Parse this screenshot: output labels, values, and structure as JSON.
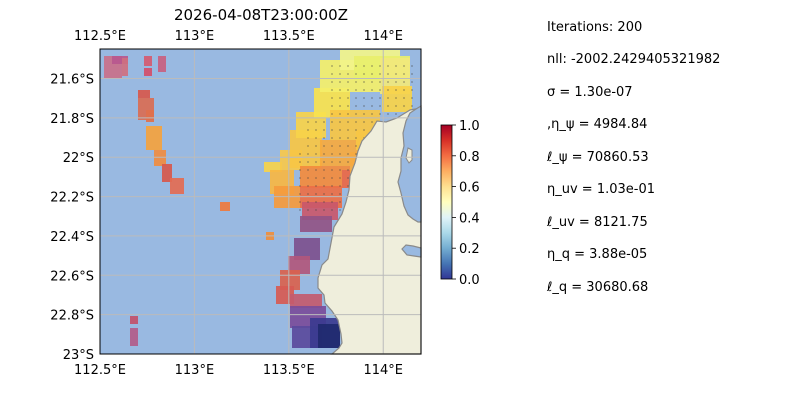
{
  "title": "2026-04-08T23:00:00Z",
  "map": {
    "lon_range": [
      112.5,
      114.2
    ],
    "lat_range": [
      -23.0,
      -21.45
    ],
    "lon_ticks": [
      {
        "value": 112.5,
        "label": "112.5°E"
      },
      {
        "value": 113.0,
        "label": "113°E"
      },
      {
        "value": 113.5,
        "label": "113.5°E"
      },
      {
        "value": 114.0,
        "label": "114°E"
      }
    ],
    "lat_ticks": [
      {
        "value": -21.6,
        "label": "21.6°S"
      },
      {
        "value": -21.8,
        "label": "21.8°S"
      },
      {
        "value": -22.0,
        "label": "22°S"
      },
      {
        "value": -22.2,
        "label": "22.2°S"
      },
      {
        "value": -22.4,
        "label": "22.4°S"
      },
      {
        "value": -22.6,
        "label": "22.6°S"
      },
      {
        "value": -22.8,
        "label": "22.8°S"
      },
      {
        "value": -23.0,
        "label": "23°S"
      }
    ],
    "colors": {
      "ocean": "#99b9e1",
      "land": "#efeedc",
      "coastline": "#8a8a8a",
      "grid": "#bbbbbb"
    }
  },
  "colorbar": {
    "colormap": "RdYlBu_r",
    "range": [
      0.0,
      1.0
    ],
    "ticks": [
      "0.0",
      "0.2",
      "0.4",
      "0.6",
      "0.8",
      "1.0"
    ]
  },
  "info": {
    "iterations": "Iterations: 200",
    "nll": "nll: -2002.2429405321982",
    "sigma": "σ = 1.30e-07",
    "eta_psi": ",η_ψ = 4984.84",
    "ell_psi": "ℓ_ψ = 70860.53",
    "eta_uv": "η_uv = 1.03e-01",
    "ell_uv": "ℓ_uv = 8121.75",
    "eta_q": "η_q = 3.88e-05",
    "ell_q": "ℓ_q = 30680.68"
  }
}
